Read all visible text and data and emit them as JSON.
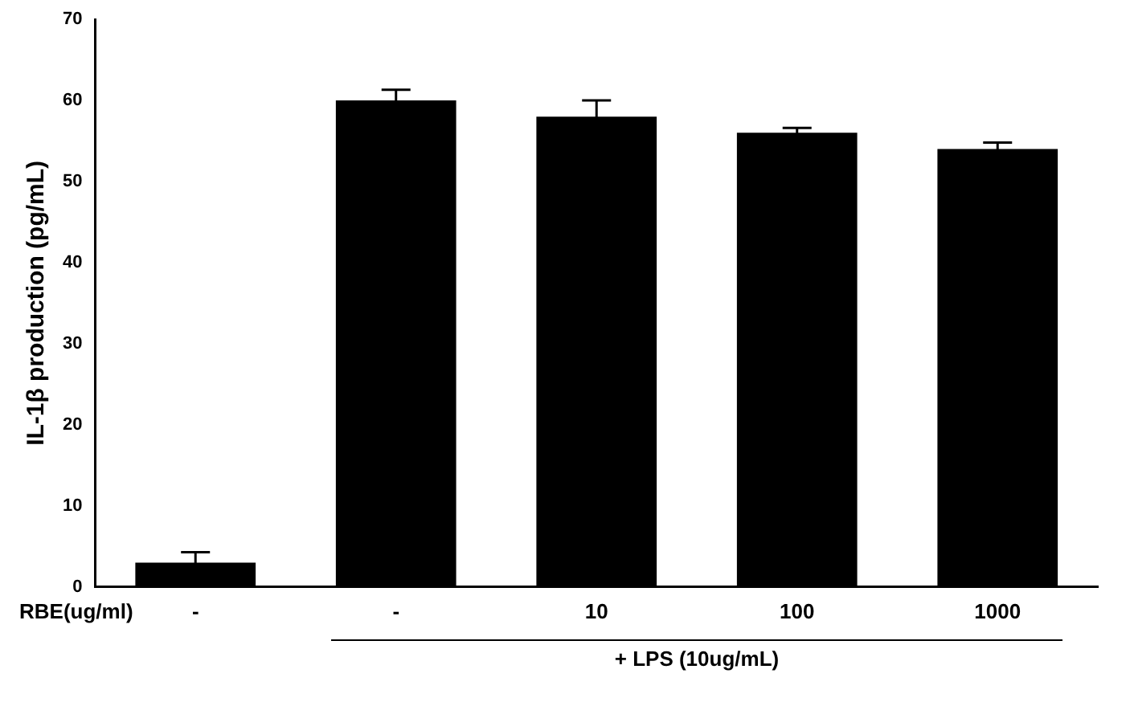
{
  "chart_data": {
    "type": "bar",
    "ylabel": "IL-1β production (pg/mL)",
    "xlabel": "RBE(ug/ml)",
    "categories": [
      "-",
      "-",
      "10",
      "100",
      "1000"
    ],
    "values": [
      3.0,
      60,
      58,
      56,
      54
    ],
    "errors": [
      1.3,
      1.3,
      2,
      0.6,
      0.8
    ],
    "color": "#000000",
    "ylim": [
      0,
      70
    ],
    "yticks": [
      0,
      10,
      20,
      30,
      40,
      50,
      60,
      70
    ],
    "grid": false,
    "legend": false,
    "annotations": [
      {
        "text": "+ LPS (10ug/mL)"
      }
    ]
  }
}
